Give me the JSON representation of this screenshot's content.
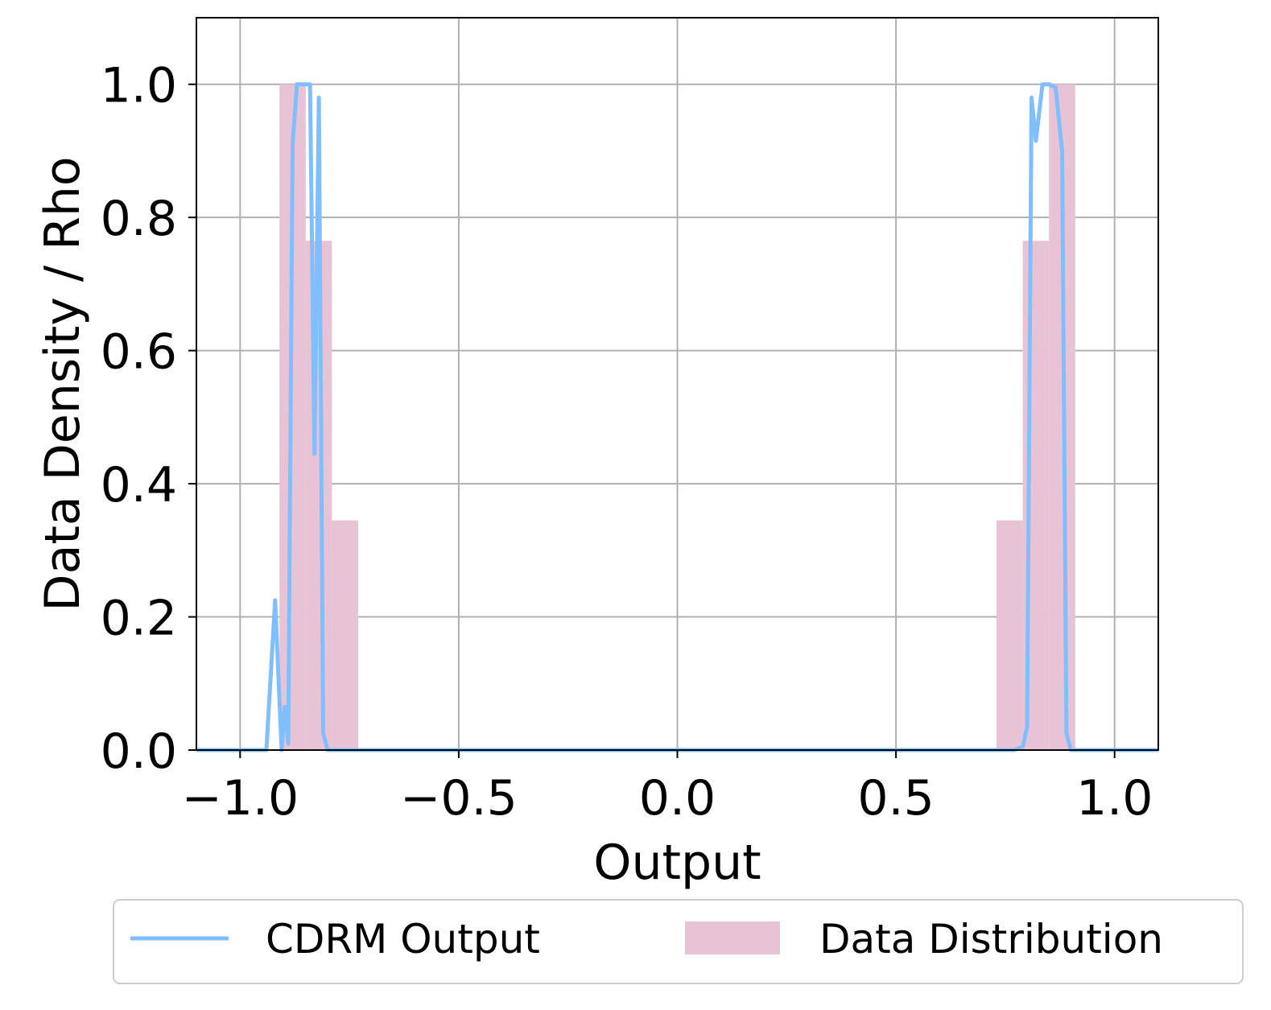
{
  "colors": {
    "line": "#80bfff",
    "bar": "#e8c3d6",
    "grid": "#b0b0b0",
    "axis": "#000000"
  },
  "chart_data": {
    "type": "bar",
    "title": "",
    "xlabel": "Output",
    "ylabel": "Data Density / Rho",
    "xlim": [
      -1.1,
      1.1
    ],
    "ylim": [
      0.0,
      1.1
    ],
    "grid": true,
    "legend_position": "bottom, outside",
    "x_ticks": [
      -1.0,
      -0.5,
      0.0,
      0.5,
      1.0
    ],
    "x_tick_labels": [
      "−1.0",
      "−0.5",
      "0.0",
      "0.5",
      "1.0"
    ],
    "y_ticks": [
      0.0,
      0.2,
      0.4,
      0.6,
      0.8,
      1.0
    ],
    "y_tick_labels": [
      "0.0",
      "0.2",
      "0.4",
      "0.6",
      "0.8",
      "1.0"
    ],
    "series": [
      {
        "name": "Data Distribution",
        "kind": "histogram",
        "bin_width": 0.06,
        "bars": [
          {
            "x0": -0.91,
            "x1": -0.85,
            "value": 1.0
          },
          {
            "x0": -0.85,
            "x1": -0.79,
            "value": 0.765
          },
          {
            "x0": -0.79,
            "x1": -0.73,
            "value": 0.345
          },
          {
            "x0": 0.73,
            "x1": 0.79,
            "value": 0.345
          },
          {
            "x0": 0.79,
            "x1": 0.85,
            "value": 0.765
          },
          {
            "x0": 0.85,
            "x1": 0.91,
            "value": 1.0
          }
        ]
      },
      {
        "name": "CDRM Output",
        "kind": "line",
        "points": [
          [
            -1.1,
            0.0
          ],
          [
            -1.05,
            0.0
          ],
          [
            -0.94,
            0.0
          ],
          [
            -0.92,
            0.225
          ],
          [
            -0.905,
            0.0
          ],
          [
            -0.898,
            0.065
          ],
          [
            -0.89,
            0.01
          ],
          [
            -0.88,
            0.91
          ],
          [
            -0.87,
            1.0
          ],
          [
            -0.855,
            1.0
          ],
          [
            -0.84,
            1.0
          ],
          [
            -0.83,
            0.445
          ],
          [
            -0.82,
            0.98
          ],
          [
            -0.81,
            0.025
          ],
          [
            -0.8,
            0.0
          ],
          [
            -0.78,
            0.0
          ],
          [
            -0.6,
            0.0
          ],
          [
            -0.3,
            0.0
          ],
          [
            0.0,
            0.0
          ],
          [
            0.3,
            0.0
          ],
          [
            0.6,
            0.0
          ],
          [
            0.77,
            0.0
          ],
          [
            0.79,
            0.005
          ],
          [
            0.8,
            0.035
          ],
          [
            0.81,
            0.98
          ],
          [
            0.82,
            0.915
          ],
          [
            0.835,
            1.0
          ],
          [
            0.85,
            1.0
          ],
          [
            0.865,
            0.995
          ],
          [
            0.88,
            0.9
          ],
          [
            0.89,
            0.025
          ],
          [
            0.9,
            0.0
          ],
          [
            1.0,
            0.0
          ],
          [
            1.1,
            0.0
          ]
        ]
      }
    ]
  }
}
